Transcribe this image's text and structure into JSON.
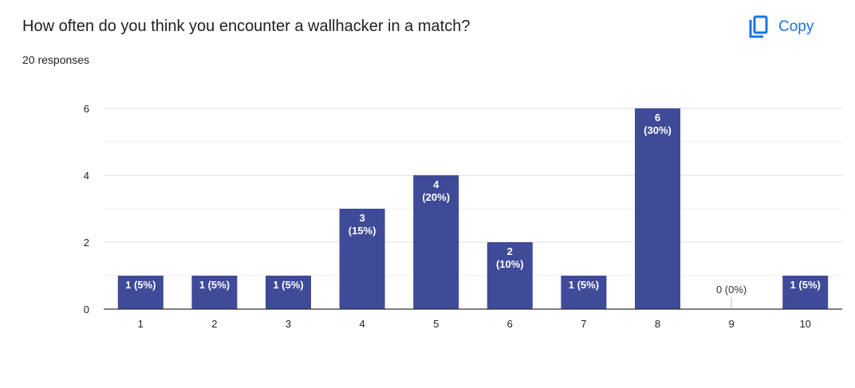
{
  "header": {
    "question": "How often do you think you encounter a wallhacker in a match?",
    "responses": "20 responses",
    "copy_label": "Copy",
    "copy_icon": "copy-icon"
  },
  "colors": {
    "bar": "#3f4a98",
    "accent": "#1a73e8",
    "grid": "#e6e6e6",
    "axis": "#333333"
  },
  "chart_data": {
    "type": "bar",
    "categories": [
      "1",
      "2",
      "3",
      "4",
      "5",
      "6",
      "7",
      "8",
      "9",
      "10"
    ],
    "values": [
      1,
      1,
      1,
      3,
      4,
      2,
      1,
      6,
      0,
      1
    ],
    "data_labels": [
      "1 (5%)",
      "1 (5%)",
      "1 (5%)",
      "3\n(15%)",
      "4\n(20%)",
      "2\n(10%)",
      "1 (5%)",
      "6\n(30%)",
      "0 (0%)",
      "1 (5%)"
    ],
    "y_ticks": [
      0,
      2,
      4,
      6
    ],
    "ylim": [
      0,
      6
    ],
    "grid": true
  }
}
